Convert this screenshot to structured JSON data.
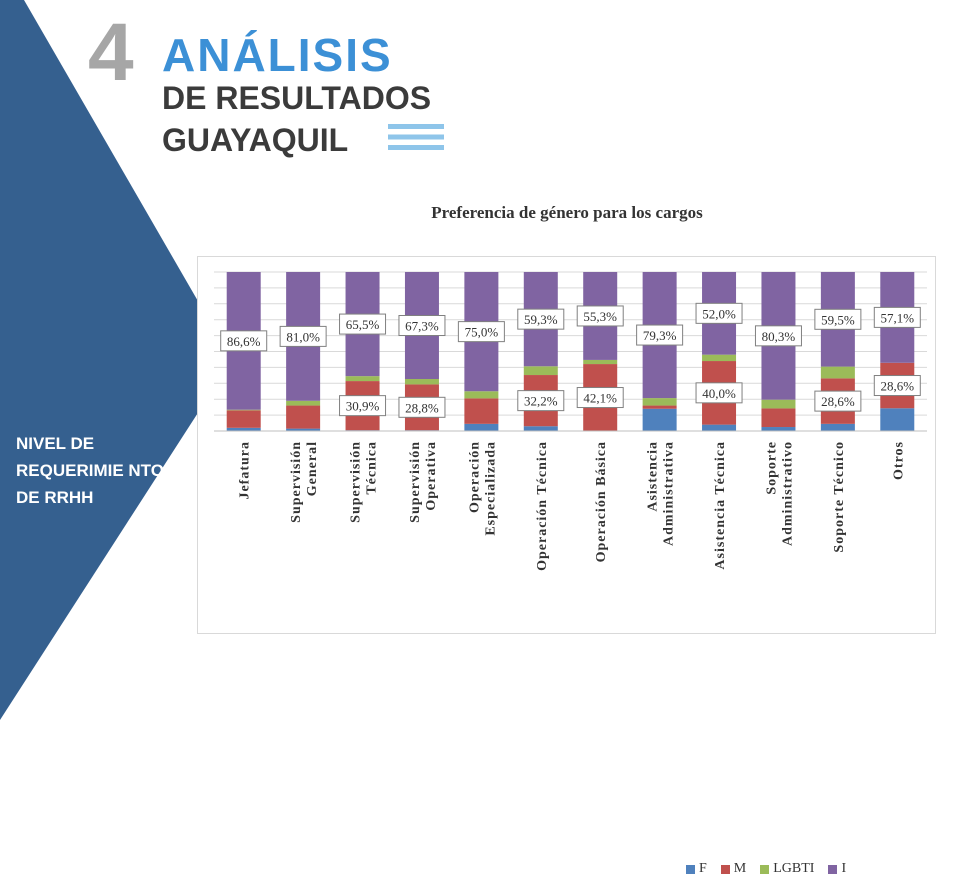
{
  "header": {
    "number": "4",
    "title_line1": "ANÁLISIS",
    "title_line2": "DE RESULTADOS",
    "title_line3": "GUAYAQUIL"
  },
  "sidebar": {
    "label": "NIVEL DE REQUERIMIE NTO DE RRHH"
  },
  "colors": {
    "sidebar": "#35608f",
    "accent": "#3c90d6",
    "F": "#4f81bd",
    "M": "#c0504d",
    "LGBTI": "#9bbb59",
    "I": "#8064a2"
  },
  "chart_data": {
    "type": "bar",
    "stacked": true,
    "title": "Preferencia de género para los cargos",
    "categories": [
      "Jefatura",
      "Supervisión General",
      "Supervisión Técnica",
      "Supervisión Operativa",
      "Operación Especializada",
      "Operación Técnica",
      "Operación Básica",
      "Asistencia Administrativa",
      "Asistencia Técnica",
      "Soporte Administrativo",
      "Soporte Técnico",
      "Otros"
    ],
    "ylim": [
      0,
      100
    ],
    "grid": true,
    "legend": "bottom",
    "series": [
      {
        "name": "F",
        "values": [
          2.0,
          1.5,
          0.5,
          0.5,
          4.5,
          3.0,
          0.0,
          14.0,
          4.0,
          2.5,
          4.5,
          14.3
        ]
      },
      {
        "name": "M",
        "values": [
          11.0,
          14.5,
          30.9,
          28.8,
          16.0,
          32.2,
          42.1,
          2.0,
          40.0,
          11.7,
          28.6,
          28.6
        ]
      },
      {
        "name": "LGBTI",
        "values": [
          0.4,
          3.0,
          3.1,
          3.4,
          4.5,
          5.5,
          2.6,
          4.7,
          4.0,
          5.5,
          7.4,
          0.0
        ]
      },
      {
        "name": "I",
        "values": [
          86.6,
          81.0,
          65.5,
          67.3,
          75.0,
          59.3,
          55.3,
          79.3,
          52.0,
          80.3,
          59.5,
          57.1
        ]
      }
    ],
    "data_labels": {
      "I": [
        "86,6%",
        "81,0%",
        "65,5%",
        "67,3%",
        "75,0%",
        "59,3%",
        "55,3%",
        "79,3%",
        "52,0%",
        "80,3%",
        "59,5%",
        "57,1%"
      ],
      "M": [
        "",
        "",
        "30,9%",
        "28,8%",
        "",
        "32,2%",
        "42,1%",
        "",
        "40,0%",
        "",
        "28,6%",
        "28,6%"
      ]
    }
  }
}
